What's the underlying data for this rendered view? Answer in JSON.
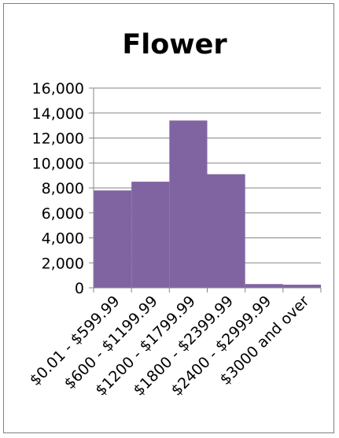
{
  "chart_data": {
    "type": "bar",
    "title": "Flower",
    "xlabel": "",
    "ylabel": "",
    "categories": [
      "$0.01 - $599.99",
      "$600 - $1199.99",
      "$1200 - $1799.99",
      "$1800 - $2399.99",
      "$2400 - $2999.99",
      "$3000 and over"
    ],
    "values": [
      7800,
      8500,
      13400,
      9100,
      300,
      250
    ],
    "ylim": [
      0,
      16000
    ],
    "yticks": [
      "0",
      "2,000",
      "4,000",
      "6,000",
      "8,000",
      "10,000",
      "12,000",
      "14,000",
      "16,000"
    ],
    "bar_color": "#8064a2",
    "grid": true,
    "legend": "none"
  }
}
